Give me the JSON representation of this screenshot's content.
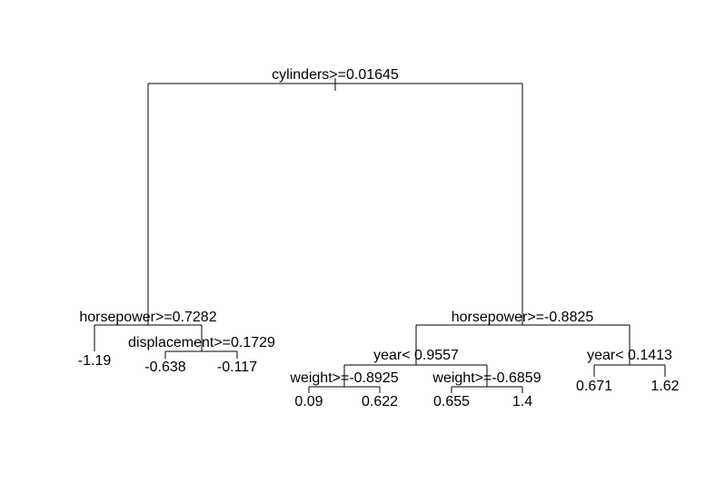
{
  "tree": {
    "root": {
      "split": "cylinders>=0.01645",
      "left": {
        "split": "horsepower>=0.7282",
        "left": {
          "value": "-1.19"
        },
        "right": {
          "split": "displacement>=0.1729",
          "left": {
            "value": "-0.638"
          },
          "right": {
            "value": "-0.117"
          }
        }
      },
      "right": {
        "split": "horsepower>=-0.8825",
        "left": {
          "split": "year< 0.9557",
          "left": {
            "split": "weight>=-0.8925",
            "left": {
              "value": "0.09"
            },
            "right": {
              "value": "0.622"
            }
          },
          "right": {
            "split": "weight>=-0.6859",
            "left": {
              "value": "0.655"
            },
            "right": {
              "value": "1.4"
            }
          }
        },
        "right": {
          "split": "year< 0.1413",
          "left": {
            "value": "0.671"
          },
          "right": {
            "value": "1.62"
          }
        }
      }
    }
  }
}
